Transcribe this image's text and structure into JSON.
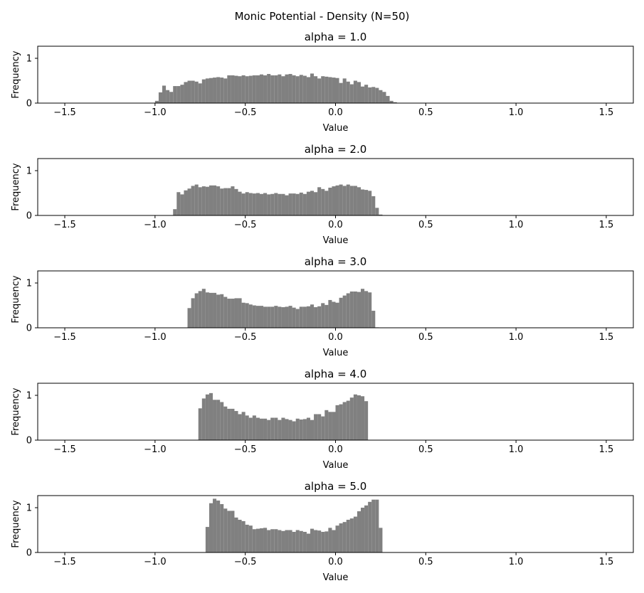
{
  "figure": {
    "title": "Monic Potential - Density (N=50)",
    "bar_color": "#808080"
  },
  "chart_data": [
    {
      "type": "bar",
      "title": "alpha = 1.0",
      "xlabel": "Value",
      "ylabel": "Frequency",
      "xlim": [
        -1.65,
        1.65
      ],
      "ylim": [
        0,
        1.27
      ],
      "xticks": [
        -1.5,
        -1.0,
        -0.5,
        0.0,
        0.5,
        1.0,
        1.5
      ],
      "xtick_labels": [
        "−1.5",
        "−1.0",
        "−0.5",
        "0.0",
        "0.5",
        "1.0",
        "1.5"
      ],
      "yticks": [
        0,
        1
      ],
      "ytick_labels": [
        "0",
        "1"
      ],
      "bin_start": -1.0,
      "bin_width": 0.02,
      "values": [
        0.05,
        0.24,
        0.39,
        0.29,
        0.25,
        0.38,
        0.38,
        0.41,
        0.47,
        0.5,
        0.5,
        0.48,
        0.44,
        0.53,
        0.55,
        0.56,
        0.57,
        0.58,
        0.57,
        0.55,
        0.62,
        0.62,
        0.61,
        0.6,
        0.62,
        0.6,
        0.61,
        0.62,
        0.62,
        0.64,
        0.62,
        0.65,
        0.62,
        0.62,
        0.64,
        0.6,
        0.64,
        0.65,
        0.62,
        0.6,
        0.63,
        0.61,
        0.58,
        0.66,
        0.6,
        0.55,
        0.6,
        0.59,
        0.58,
        0.57,
        0.56,
        0.45,
        0.55,
        0.48,
        0.42,
        0.5,
        0.47,
        0.37,
        0.41,
        0.35,
        0.36,
        0.34,
        0.29,
        0.25,
        0.16,
        0.05,
        0.02
      ]
    },
    {
      "type": "bar",
      "title": "alpha = 2.0",
      "xlabel": "Value",
      "ylabel": "Frequency",
      "xlim": [
        -1.65,
        1.65
      ],
      "ylim": [
        0,
        1.27
      ],
      "xticks": [
        -1.5,
        -1.0,
        -0.5,
        0.0,
        0.5,
        1.0,
        1.5
      ],
      "xtick_labels": [
        "−1.5",
        "−1.0",
        "−0.5",
        "0.0",
        "0.5",
        "1.0",
        "1.5"
      ],
      "yticks": [
        0,
        1
      ],
      "ytick_labels": [
        "0",
        "1"
      ],
      "bin_start": -0.9,
      "bin_width": 0.02,
      "values": [
        0.14,
        0.52,
        0.47,
        0.56,
        0.6,
        0.66,
        0.69,
        0.63,
        0.65,
        0.64,
        0.67,
        0.67,
        0.65,
        0.6,
        0.61,
        0.61,
        0.65,
        0.59,
        0.53,
        0.49,
        0.52,
        0.5,
        0.49,
        0.5,
        0.48,
        0.5,
        0.47,
        0.48,
        0.5,
        0.48,
        0.48,
        0.45,
        0.49,
        0.49,
        0.48,
        0.51,
        0.48,
        0.53,
        0.55,
        0.52,
        0.63,
        0.59,
        0.55,
        0.62,
        0.65,
        0.67,
        0.69,
        0.66,
        0.69,
        0.66,
        0.66,
        0.63,
        0.58,
        0.57,
        0.55,
        0.43,
        0.17,
        0.02
      ]
    },
    {
      "type": "bar",
      "title": "alpha = 3.0",
      "xlabel": "Value",
      "ylabel": "Frequency",
      "xlim": [
        -1.65,
        1.65
      ],
      "ylim": [
        0,
        1.27
      ],
      "xticks": [
        -1.5,
        -1.0,
        -0.5,
        0.0,
        0.5,
        1.0,
        1.5
      ],
      "xtick_labels": [
        "−1.5",
        "−1.0",
        "−0.5",
        "0.0",
        "0.5",
        "1.0",
        "1.5"
      ],
      "yticks": [
        0,
        1
      ],
      "ytick_labels": [
        "0",
        "1"
      ],
      "bin_start": -0.82,
      "bin_width": 0.02,
      "values": [
        0.44,
        0.66,
        0.77,
        0.82,
        0.87,
        0.79,
        0.78,
        0.78,
        0.74,
        0.75,
        0.69,
        0.65,
        0.65,
        0.66,
        0.66,
        0.56,
        0.55,
        0.52,
        0.5,
        0.49,
        0.49,
        0.47,
        0.47,
        0.47,
        0.49,
        0.47,
        0.46,
        0.47,
        0.49,
        0.45,
        0.42,
        0.47,
        0.47,
        0.48,
        0.52,
        0.46,
        0.48,
        0.55,
        0.51,
        0.62,
        0.58,
        0.56,
        0.67,
        0.72,
        0.77,
        0.81,
        0.81,
        0.8,
        0.87,
        0.82,
        0.79,
        0.38,
        0.01
      ]
    },
    {
      "type": "bar",
      "title": "alpha = 4.0",
      "xlabel": "Value",
      "ylabel": "Frequency",
      "xlim": [
        -1.65,
        1.65
      ],
      "ylim": [
        0,
        1.27
      ],
      "xticks": [
        -1.5,
        -1.0,
        -0.5,
        0.0,
        0.5,
        1.0,
        1.5
      ],
      "xtick_labels": [
        "−1.5",
        "−1.0",
        "−0.5",
        "0.0",
        "0.5",
        "1.0",
        "1.5"
      ],
      "yticks": [
        0,
        1
      ],
      "ytick_labels": [
        "0",
        "1"
      ],
      "bin_start": -0.76,
      "bin_width": 0.02,
      "values": [
        0.71,
        0.93,
        1.02,
        1.05,
        0.9,
        0.9,
        0.85,
        0.75,
        0.7,
        0.7,
        0.65,
        0.58,
        0.63,
        0.55,
        0.5,
        0.55,
        0.5,
        0.48,
        0.48,
        0.45,
        0.5,
        0.5,
        0.45,
        0.5,
        0.47,
        0.45,
        0.42,
        0.48,
        0.46,
        0.47,
        0.5,
        0.45,
        0.58,
        0.58,
        0.53,
        0.67,
        0.63,
        0.63,
        0.78,
        0.8,
        0.85,
        0.88,
        0.95,
        1.02,
        1.0,
        0.98,
        0.87
      ]
    },
    {
      "type": "bar",
      "title": "alpha = 5.0",
      "xlabel": "Value",
      "ylabel": "Frequency",
      "xlim": [
        -1.65,
        1.65
      ],
      "ylim": [
        0,
        1.27
      ],
      "xticks": [
        -1.5,
        -1.0,
        -0.5,
        0.0,
        0.5,
        1.0,
        1.5
      ],
      "xtick_labels": [
        "−1.5",
        "−1.0",
        "−0.5",
        "0.0",
        "0.5",
        "1.0",
        "1.5"
      ],
      "yticks": [
        0,
        1
      ],
      "ytick_labels": [
        "0",
        "1"
      ],
      "bin_start": -0.72,
      "bin_width": 0.02,
      "values": [
        0.57,
        1.1,
        1.2,
        1.16,
        1.08,
        0.98,
        0.93,
        0.93,
        0.78,
        0.73,
        0.7,
        0.62,
        0.6,
        0.52,
        0.53,
        0.54,
        0.55,
        0.5,
        0.52,
        0.52,
        0.5,
        0.48,
        0.5,
        0.5,
        0.46,
        0.5,
        0.48,
        0.46,
        0.42,
        0.53,
        0.5,
        0.49,
        0.46,
        0.47,
        0.55,
        0.5,
        0.6,
        0.65,
        0.68,
        0.73,
        0.76,
        0.8,
        0.92,
        1.0,
        1.05,
        1.13,
        1.18,
        1.18,
        0.55
      ]
    }
  ]
}
